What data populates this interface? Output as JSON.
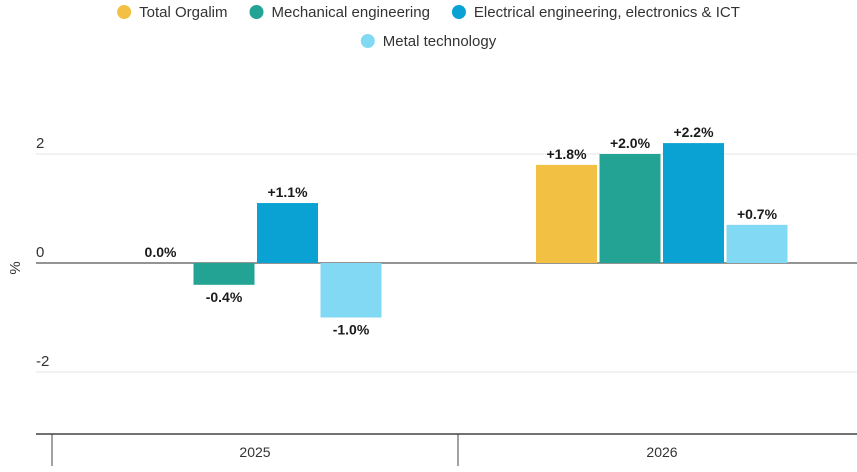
{
  "chart_data": {
    "type": "bar",
    "title": "",
    "xlabel": "",
    "ylabel": "%",
    "ylim": [
      -3.5,
      3
    ],
    "yticks": [
      -2,
      0,
      2
    ],
    "grid": true,
    "legend_position": "top",
    "categories": [
      "2025",
      "2026"
    ],
    "series": [
      {
        "name": "Total Orgalim",
        "color": "#f2c144",
        "values": [
          0.0,
          1.8
        ],
        "labels": [
          "0.0%",
          "+1.8%"
        ]
      },
      {
        "name": "Mechanical engineering",
        "color": "#22a393",
        "values": [
          -0.4,
          2.0
        ],
        "labels": [
          "-0.4%",
          "+2.0%"
        ]
      },
      {
        "name": "Electrical engineering, electronics & ICT",
        "color": "#0aa1d3",
        "values": [
          1.1,
          2.2
        ],
        "labels": [
          "+1.1%",
          "+2.2%"
        ]
      },
      {
        "name": "Metal technology",
        "color": "#82d9f4",
        "values": [
          -1.0,
          0.7
        ],
        "labels": [
          "-1.0%",
          "+0.7%"
        ]
      }
    ]
  }
}
